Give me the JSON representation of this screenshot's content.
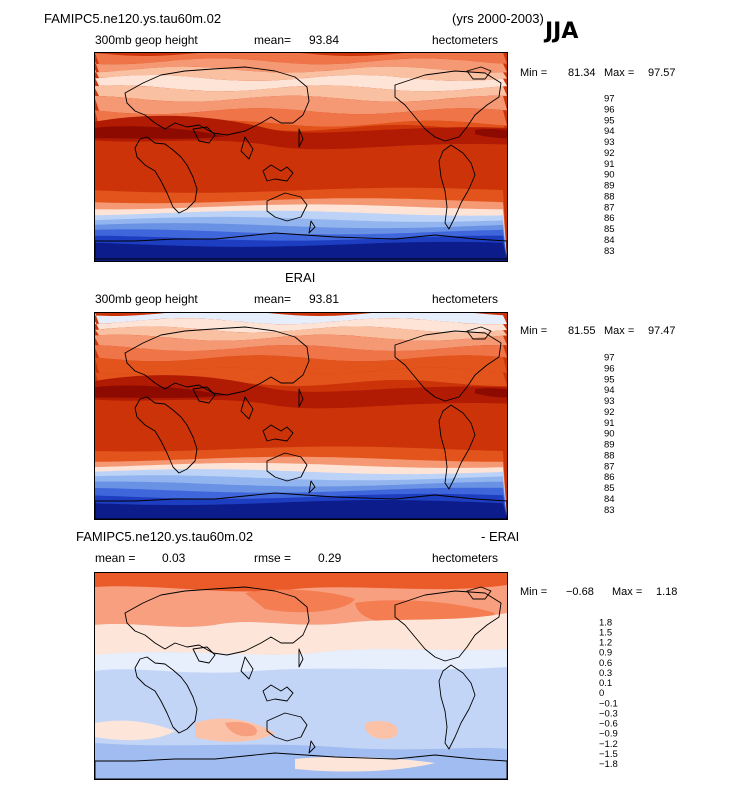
{
  "chart_data": [
    {
      "type": "contour-map",
      "title": "FAMIPC5.ne120.ys.tau60m.02",
      "years": "(yrs 2000-2003)",
      "season": "JJA",
      "variable": "300mb geop height",
      "mean_label": "mean=",
      "mean_value": "93.84",
      "units": "hectometers",
      "min_label": "Min =",
      "min_value": "81.34",
      "max_label": "Max =",
      "max_value": "97.57",
      "levels": [
        "97",
        "96",
        "95",
        "94",
        "93",
        "92",
        "91",
        "90",
        "89",
        "88",
        "87",
        "86",
        "85",
        "84",
        "83"
      ],
      "colors": [
        "#8c0a00",
        "#b11a03",
        "#cc3309",
        "#e2541b",
        "#ef7548",
        "#f59874",
        "#fac0a2",
        "#fde4d6",
        "#e6eefc",
        "#bcd2f7",
        "#93b5ef",
        "#6a92e4",
        "#4066dc",
        "#1e3ec2",
        "#0c1c8a"
      ]
    },
    {
      "type": "contour-map",
      "title": "ERAI",
      "variable": "300mb geop height",
      "mean_label": "mean=",
      "mean_value": "93.81",
      "units": "hectometers",
      "min_label": "Min =",
      "min_value": "81.55",
      "max_label": "Max =",
      "max_value": "97.47",
      "levels": [
        "97",
        "96",
        "95",
        "94",
        "93",
        "92",
        "91",
        "90",
        "89",
        "88",
        "87",
        "86",
        "85",
        "84",
        "83"
      ],
      "colors": [
        "#8c0a00",
        "#b11a03",
        "#cc3309",
        "#e2541b",
        "#ef7548",
        "#f59874",
        "#fac0a2",
        "#fde4d6",
        "#e6eefc",
        "#bcd2f7",
        "#93b5ef",
        "#6a92e4",
        "#4066dc",
        "#1e3ec2",
        "#0c1c8a"
      ]
    },
    {
      "type": "contour-map",
      "title_left": "FAMIPC5.ne120.ys.tau60m.02",
      "title_right": "- ERAI",
      "mean_label": "mean =",
      "mean_value": "0.03",
      "rmse_label": "rmse =",
      "rmse_value": "0.29",
      "units": "hectometers",
      "min_label": "Min =",
      "min_value": "−0.68",
      "max_label": "Max =",
      "max_value": "1.18",
      "levels": [
        "1.8",
        "1.5",
        "1.2",
        "0.9",
        "0.6",
        "0.3",
        "0.1",
        "0",
        "−0.1",
        "−0.3",
        "−0.6",
        "−0.9",
        "−1.2",
        "−1.5",
        "−1.8"
      ],
      "colors": [
        "#a5170a",
        "#c9280a",
        "#dc3b10",
        "#eb5b2a",
        "#f47d52",
        "#f79f7f",
        "#fbc2a8",
        "#fde6d9",
        "#e7eefc",
        "#c3d5f7",
        "#a0bcf1",
        "#7ea2ea",
        "#5279e0",
        "#2a4fcf",
        "#102aa0",
        "#081a72"
      ]
    }
  ]
}
